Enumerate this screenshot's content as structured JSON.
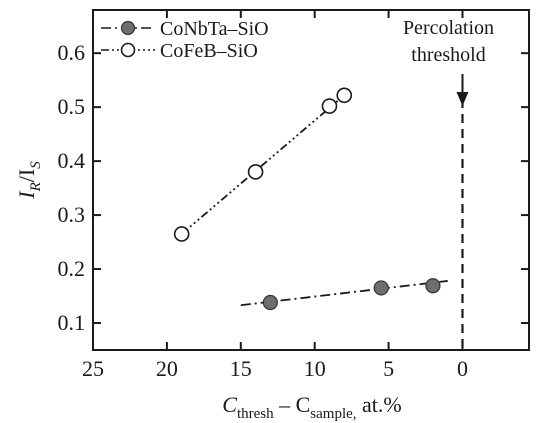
{
  "chart_data": {
    "type": "scatter",
    "xlabel": {
      "main": "C",
      "sub1": "thresh",
      "mid": " – C",
      "sub2": "sample,",
      "tail": " at.%"
    },
    "ylabel": {
      "main": "I",
      "sub1": "R",
      "mid": "/I",
      "sub2": "S"
    },
    "x_reversed": true,
    "xlim": [
      25,
      -4.5
    ],
    "ylim": [
      0.05,
      0.68
    ],
    "x_ticks": [
      25,
      20,
      15,
      10,
      5,
      0
    ],
    "y_ticks": [
      0.1,
      0.2,
      0.3,
      0.4,
      0.5,
      0.6
    ],
    "x_tick_labels": [
      "25",
      "20",
      "15",
      "10",
      "5",
      "0"
    ],
    "y_tick_labels": [
      "0.1",
      "0.2",
      "0.3",
      "0.4",
      "0.5",
      "0.6"
    ],
    "series": [
      {
        "name": "CoNbTa–SiO",
        "marker": "filled-circle",
        "color": "#6e6e6e",
        "points": [
          {
            "x": 13,
            "y": 0.138
          },
          {
            "x": 5.5,
            "y": 0.165
          },
          {
            "x": 2,
            "y": 0.169
          }
        ],
        "fit_line": {
          "x": [
            15,
            1
          ],
          "y": [
            0.133,
            0.178
          ]
        }
      },
      {
        "name": "CoFeB–SiO",
        "marker": "open-circle",
        "color": "#ffffff",
        "points": [
          {
            "x": 19,
            "y": 0.265
          },
          {
            "x": 14,
            "y": 0.38
          },
          {
            "x": 9,
            "y": 0.502
          },
          {
            "x": 8,
            "y": 0.522
          }
        ],
        "fit_line": {
          "x": [
            19,
            8
          ],
          "y": [
            0.265,
            0.522
          ]
        }
      }
    ],
    "annotation": {
      "lines": [
        "Percolation",
        "threshold"
      ],
      "x": 0
    },
    "legend_position": "top-left",
    "grid": false
  }
}
